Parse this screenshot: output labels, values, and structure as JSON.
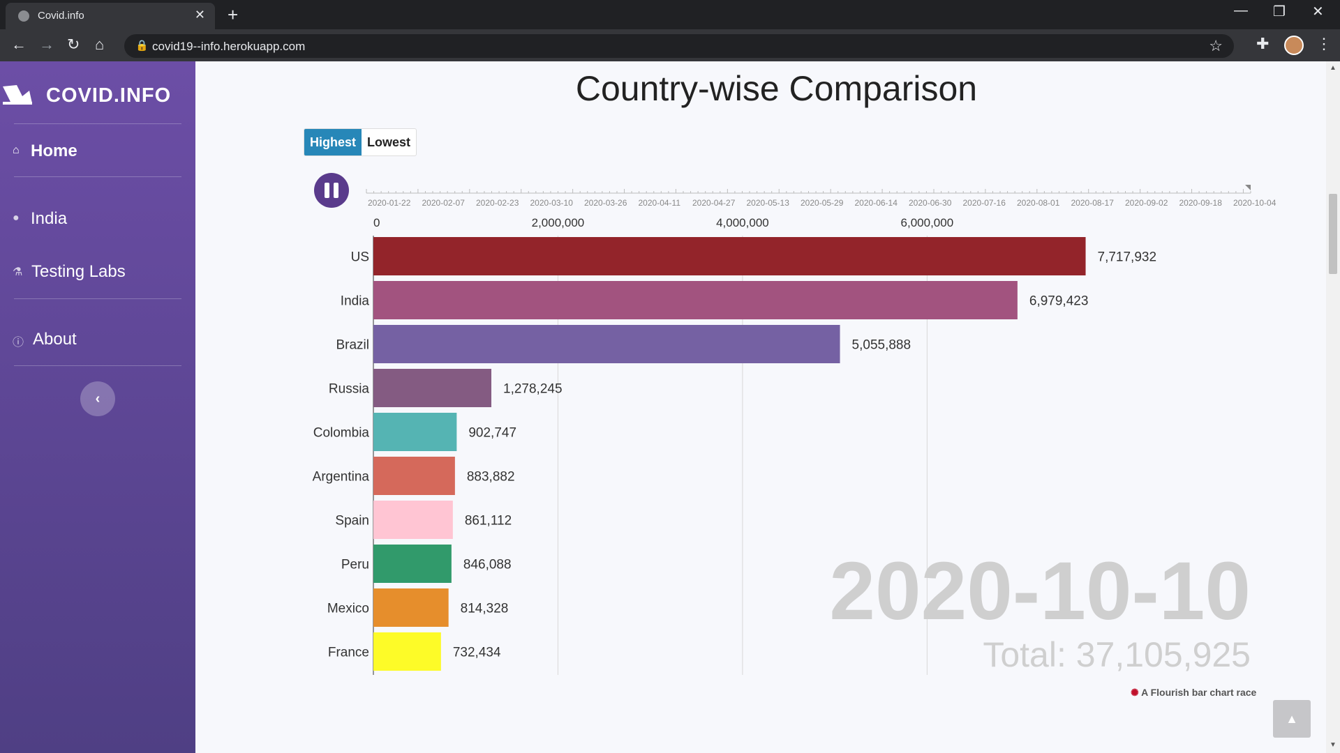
{
  "browser": {
    "tab_title": "Covid.info",
    "url": "covid19--info.herokuapp.com"
  },
  "sidebar": {
    "brand": "COVID.INFO",
    "items": [
      {
        "label": "Home",
        "icon": "home-icon"
      },
      {
        "label": "India",
        "icon": "map-marker-icon"
      },
      {
        "label": "Testing Labs",
        "icon": "flask-icon"
      },
      {
        "label": "About",
        "icon": "info-icon"
      }
    ]
  },
  "main": {
    "title": "Country-wise Comparison",
    "toggle": {
      "highest": "Highest",
      "lowest": "Lowest",
      "selected": "Highest"
    },
    "date": "2020-10-10",
    "total": "Total: 37,105,925",
    "credit": "A Flourish bar chart race"
  },
  "colors": {
    "sidebar": "#5c4798",
    "accent": "#2787b8"
  },
  "chart_data": {
    "type": "bar",
    "orientation": "horizontal",
    "categories": [
      "US",
      "India",
      "Brazil",
      "Russia",
      "Colombia",
      "Argentina",
      "Spain",
      "Peru",
      "Mexico",
      "France"
    ],
    "values": [
      7717932,
      6979423,
      5055888,
      1278245,
      902747,
      883882,
      861112,
      846088,
      814328,
      732434
    ],
    "value_labels": [
      "7,717,932",
      "6,979,423",
      "5,055,888",
      "1,278,245",
      "902,747",
      "883,882",
      "861,112",
      "846,088",
      "814,328",
      "732,434"
    ],
    "colors": [
      "#93242a",
      "#a2537f",
      "#7561a3",
      "#845b82",
      "#55b4b3",
      "#d5695b",
      "#ffc5d3",
      "#319a6b",
      "#e68e2c",
      "#fdfb28"
    ],
    "xticks": [
      0,
      2000000,
      4000000,
      6000000
    ],
    "xtick_labels": [
      "0",
      "2,000,000",
      "4,000,000",
      "6,000,000"
    ],
    "xlim": [
      0,
      8750000
    ],
    "timeline_labels": [
      "2020-01-22",
      "2020-02-07",
      "2020-02-23",
      "2020-03-10",
      "2020-03-26",
      "2020-04-11",
      "2020-04-27",
      "2020-05-13",
      "2020-05-29",
      "2020-06-14",
      "2020-06-30",
      "2020-07-16",
      "2020-08-01",
      "2020-08-17",
      "2020-09-02",
      "2020-09-18",
      "2020-10-04"
    ]
  }
}
